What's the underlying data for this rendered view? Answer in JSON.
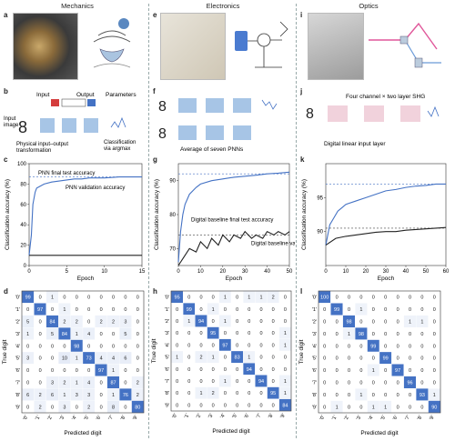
{
  "columns": [
    {
      "title": "Mechanics"
    },
    {
      "title": "Electronics"
    },
    {
      "title": "Optics"
    }
  ],
  "panel_letters": [
    "a",
    "b",
    "c",
    "d",
    "e",
    "f",
    "g",
    "h",
    "i",
    "j",
    "k",
    "l"
  ],
  "schematic_b": {
    "input": "Input",
    "output": "Output",
    "parameters": "Parameters",
    "input_image": "Input\nimage",
    "physical": "Physical input–output\ntransformation",
    "classification": "Classification\nvia argmax"
  },
  "schematic_f": {
    "caption": "Average of seven PNNs"
  },
  "schematic_j": {
    "title": "Four channel × two layer SHG",
    "caption": "Digital linear input layer"
  },
  "chart_data": [
    {
      "type": "line",
      "panel": "c",
      "xlabel": "Epoch",
      "ylabel": "Classification accuracy (%)",
      "xlim": [
        0,
        15
      ],
      "ylim": [
        0,
        100
      ],
      "xticks": [
        0,
        5,
        10,
        15
      ],
      "yticks": [
        0,
        20,
        40,
        60,
        80,
        100
      ],
      "annotations": [
        "PNN final test accuracy",
        "PNN validation accuracy"
      ],
      "hline": 87,
      "series": [
        {
          "values_x": [
            0,
            0.3,
            0.5,
            0.8,
            1,
            1.5,
            2,
            3,
            4,
            5,
            6,
            7,
            8,
            10,
            12,
            15
          ],
          "values_y": [
            10,
            30,
            60,
            72,
            76,
            78,
            80,
            82,
            83,
            84,
            85,
            85,
            86,
            86,
            87,
            87
          ],
          "color": "#4472c4"
        },
        {
          "values_x": [
            0,
            15
          ],
          "values_y": [
            10,
            10
          ],
          "color": "#222222"
        }
      ]
    },
    {
      "type": "line",
      "panel": "g",
      "xlabel": "Epoch",
      "ylabel": "Classification accuracy (%)",
      "xlim": [
        0,
        50
      ],
      "ylim": [
        65,
        95
      ],
      "xticks": [
        0,
        10,
        20,
        30,
        40,
        50
      ],
      "yticks": [
        70,
        80,
        90
      ],
      "annotations": [
        "Digital baseline final test accuracy",
        "Digital baseline validation accuracy"
      ],
      "hlines": [
        92,
        74
      ],
      "series": [
        {
          "values_x": [
            0,
            1,
            2,
            3,
            5,
            8,
            10,
            15,
            20,
            25,
            30,
            35,
            40,
            45,
            50
          ],
          "values_y": [
            66,
            75,
            80,
            83,
            86,
            88,
            89,
            90,
            90.5,
            91,
            91.3,
            91.6,
            92,
            92.2,
            92.5
          ],
          "color": "#4472c4"
        },
        {
          "values_x": [
            0,
            2,
            5,
            8,
            10,
            13,
            15,
            18,
            20,
            23,
            25,
            28,
            30,
            33,
            35,
            38,
            40,
            43,
            45,
            48,
            50
          ],
          "values_y": [
            65,
            67,
            70,
            69,
            72,
            70,
            73,
            71,
            74,
            72,
            74,
            73,
            75,
            73,
            74,
            73,
            75,
            74,
            75,
            74,
            75
          ],
          "color": "#222222"
        }
      ]
    },
    {
      "type": "line",
      "panel": "k",
      "xlabel": "Epoch",
      "ylabel": "Classification accuracy (%)",
      "xlim": [
        0,
        60
      ],
      "ylim": [
        85,
        100
      ],
      "xticks": [
        0,
        10,
        20,
        30,
        40,
        50,
        60
      ],
      "yticks": [
        90,
        95
      ],
      "hlines": [
        97,
        90.5
      ],
      "series": [
        {
          "values_x": [
            0,
            2,
            4,
            6,
            8,
            10,
            15,
            20,
            25,
            30,
            35,
            40,
            45,
            50,
            55,
            60
          ],
          "values_y": [
            88,
            91,
            92,
            93,
            93.5,
            94,
            94.5,
            95,
            95.5,
            96,
            96.2,
            96.5,
            96.7,
            96.8,
            97,
            97
          ],
          "color": "#4472c4"
        },
        {
          "values_x": [
            0,
            5,
            10,
            15,
            20,
            25,
            30,
            35,
            40,
            45,
            50,
            55,
            60
          ],
          "values_y": [
            88,
            89,
            89.3,
            89.5,
            89.7,
            89.9,
            90,
            90,
            90.2,
            90.3,
            90.4,
            90.5,
            90.6
          ],
          "color": "#222222"
        }
      ]
    },
    {
      "type": "heatmap",
      "panel": "d",
      "xlabel": "Predicted digit",
      "ylabel": "True digit",
      "labels": [
        "'0'",
        "'1'",
        "'2'",
        "'3'",
        "'4'",
        "'5'",
        "'6'",
        "'7'",
        "'8'",
        "'9'"
      ],
      "matrix": [
        [
          99,
          0,
          1,
          0,
          0,
          0,
          0,
          0,
          0,
          0
        ],
        [
          0,
          97,
          0,
          1,
          0,
          0,
          0,
          0,
          0,
          0
        ],
        [
          5,
          0,
          84,
          2,
          2,
          0,
          2,
          2,
          3,
          0
        ],
        [
          1,
          0,
          5,
          84,
          1,
          4,
          0,
          0,
          5,
          0
        ],
        [
          0,
          0,
          0,
          0,
          98,
          0,
          0,
          0,
          0,
          0
        ],
        [
          3,
          0,
          0,
          10,
          1,
          73,
          4,
          4,
          6,
          0
        ],
        [
          0,
          0,
          0,
          0,
          0,
          0,
          97,
          1,
          0,
          0
        ],
        [
          0,
          0,
          3,
          2,
          1,
          4,
          0,
          87,
          0,
          2
        ],
        [
          6,
          2,
          6,
          1,
          3,
          3,
          0,
          1,
          76,
          2
        ],
        [
          0,
          2,
          0,
          3,
          0,
          2,
          0,
          8,
          0,
          80
        ]
      ]
    },
    {
      "type": "heatmap",
      "panel": "h",
      "xlabel": "Predicted digit",
      "ylabel": "True digit",
      "labels": [
        "'0'",
        "'1'",
        "'2'",
        "'3'",
        "'4'",
        "'5'",
        "'6'",
        "'7'",
        "'8'",
        "'9'"
      ],
      "matrix": [
        [
          95,
          0,
          0,
          0,
          1,
          0,
          1,
          1,
          2,
          0
        ],
        [
          0,
          99,
          0,
          1,
          0,
          0,
          0,
          0,
          0,
          0
        ],
        [
          0,
          1,
          94,
          0,
          1,
          0,
          0,
          0,
          0,
          0
        ],
        [
          0,
          0,
          0,
          95,
          0,
          0,
          0,
          0,
          0,
          1
        ],
        [
          0,
          0,
          0,
          0,
          97,
          0,
          0,
          0,
          0,
          1
        ],
        [
          1,
          0,
          2,
          1,
          0,
          83,
          1,
          0,
          0,
          0
        ],
        [
          0,
          0,
          0,
          0,
          0,
          0,
          94,
          0,
          0,
          0
        ],
        [
          0,
          0,
          0,
          0,
          1,
          0,
          0,
          94,
          0,
          1
        ],
        [
          0,
          0,
          1,
          2,
          0,
          0,
          0,
          0,
          95,
          1
        ],
        [
          0,
          0,
          0,
          0,
          0,
          0,
          0,
          0,
          0,
          84
        ]
      ]
    },
    {
      "type": "heatmap",
      "panel": "l",
      "xlabel": "Predicted digit",
      "ylabel": "True digit",
      "labels": [
        "'0'",
        "'1'",
        "'2'",
        "'3'",
        "'4'",
        "'5'",
        "'6'",
        "'7'",
        "'8'",
        "'9'"
      ],
      "matrix": [
        [
          100,
          0,
          0,
          0,
          0,
          0,
          0,
          0,
          0,
          0
        ],
        [
          0,
          99,
          0,
          1,
          0,
          0,
          0,
          0,
          0,
          0
        ],
        [
          0,
          0,
          98,
          0,
          0,
          0,
          0,
          1,
          1,
          0
        ],
        [
          0,
          0,
          1,
          98,
          0,
          0,
          0,
          0,
          0,
          0
        ],
        [
          0,
          0,
          0,
          0,
          99,
          0,
          0,
          0,
          0,
          0
        ],
        [
          0,
          0,
          0,
          0,
          0,
          99,
          0,
          0,
          0,
          0
        ],
        [
          0,
          0,
          0,
          0,
          1,
          0,
          97,
          0,
          0,
          0
        ],
        [
          0,
          0,
          0,
          0,
          0,
          0,
          0,
          96,
          0,
          0
        ],
        [
          0,
          0,
          0,
          1,
          0,
          0,
          0,
          0,
          93,
          1
        ],
        [
          0,
          1,
          0,
          0,
          1,
          1,
          0,
          0,
          0,
          90
        ]
      ]
    }
  ]
}
